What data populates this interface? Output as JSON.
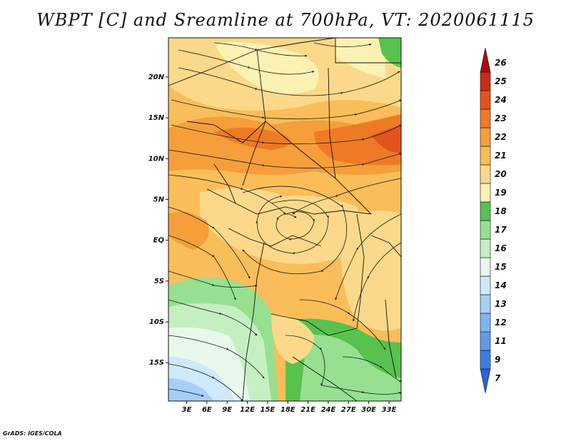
{
  "title": "WBPT [C] and Sreamline at 700hPa, VT: 2020061115",
  "credit": "GrADS: IGES/COLA",
  "map": {
    "variable": "WBPT",
    "units": "C",
    "level": "700hPa",
    "valid_time": "2020061115",
    "lon_ticks": [
      "3E",
      "6E",
      "9E",
      "12E",
      "15E",
      "18E",
      "21E",
      "24E",
      "27E",
      "30E",
      "33E"
    ],
    "lat_ticks": [
      "20N",
      "15N",
      "10N",
      "5N",
      "EQ",
      "5S",
      "10S",
      "15S"
    ],
    "lon_values": [
      3,
      6,
      9,
      12,
      15,
      18,
      21,
      24,
      27,
      30,
      33
    ],
    "lat_values": [
      20,
      15,
      10,
      5,
      0,
      -5,
      -10,
      -15
    ],
    "lon_range": [
      0.3,
      34.8
    ],
    "lat_range": [
      -19.7,
      24.8
    ],
    "features": [
      "filled wet-bulb potential temperature contours",
      "700hPa streamlines with arrowheads",
      "country borders",
      "cyclonic circulation near 5N 18E"
    ]
  },
  "colorbar": {
    "labels": [
      "7",
      "9",
      "11",
      "12",
      "13",
      "14",
      "15",
      "16",
      "17",
      "18",
      "19",
      "20",
      "21",
      "22",
      "23",
      "24",
      "25",
      "26"
    ],
    "colors": [
      "#2a62d6",
      "#3c7fe3",
      "#5d9ceb",
      "#7fb6f2",
      "#a6cff7",
      "#cfe8fb",
      "#e8f7ec",
      "#c6efc1",
      "#96e090",
      "#57c24e",
      "#fbf1b2",
      "#fcd98a",
      "#f9bd5a",
      "#f59e3a",
      "#ee7a26",
      "#e2541c",
      "#cc2a14",
      "#a80e0e"
    ]
  },
  "colors": {
    "frame": "#111111",
    "streamline": "#1a1a1a",
    "border": "#111111"
  }
}
